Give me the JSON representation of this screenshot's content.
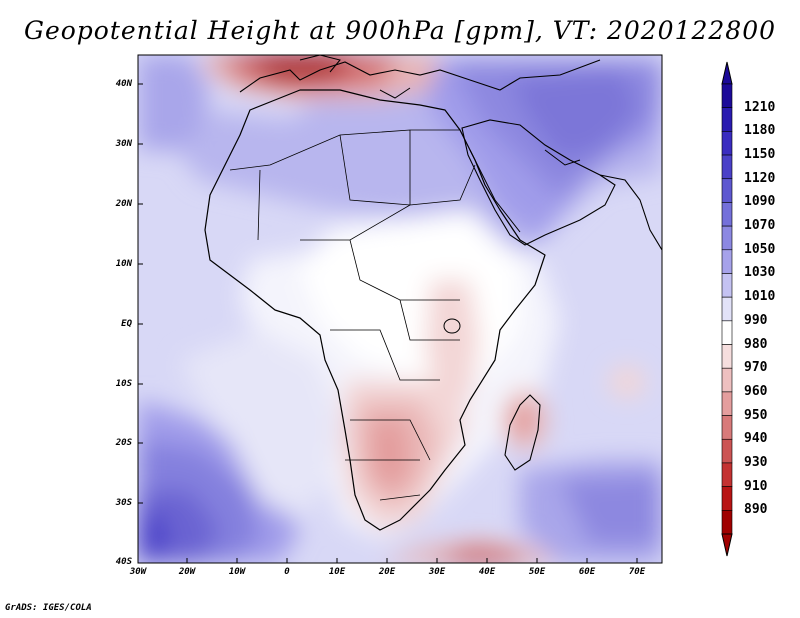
{
  "title": "Geopotential Height at 900hPa [gpm], VT: 2020122800",
  "credit": "GrADS: IGES/COLA",
  "map": {
    "lat_labels": [
      "40N",
      "30N",
      "20N",
      "10N",
      "EQ",
      "10S",
      "20S",
      "30S",
      "40S"
    ],
    "lon_labels": [
      "30W",
      "20W",
      "10W",
      "0",
      "10E",
      "20E",
      "30E",
      "40E",
      "50E",
      "60E",
      "70E"
    ]
  },
  "colorbar": {
    "labels": [
      "1210",
      "1180",
      "1150",
      "1120",
      "1090",
      "1070",
      "1050",
      "1030",
      "1010",
      "990",
      "980",
      "970",
      "960",
      "950",
      "940",
      "930",
      "910",
      "890"
    ],
    "colors": [
      "#1c0a99",
      "#2a1bb0",
      "#3a2cc0",
      "#4a40c8",
      "#5e58d0",
      "#7470da",
      "#8c88e2",
      "#a6a2ea",
      "#c4c2f2",
      "#e2e2f8",
      "#ffffff",
      "#f6dede",
      "#eec0c0",
      "#e49e9e",
      "#d87a7a",
      "#cc5454",
      "#c43232",
      "#b81414",
      "#a00000"
    ]
  },
  "icons": {
    "cb_up": "triangle-up-icon",
    "cb_down": "triangle-down-icon"
  }
}
